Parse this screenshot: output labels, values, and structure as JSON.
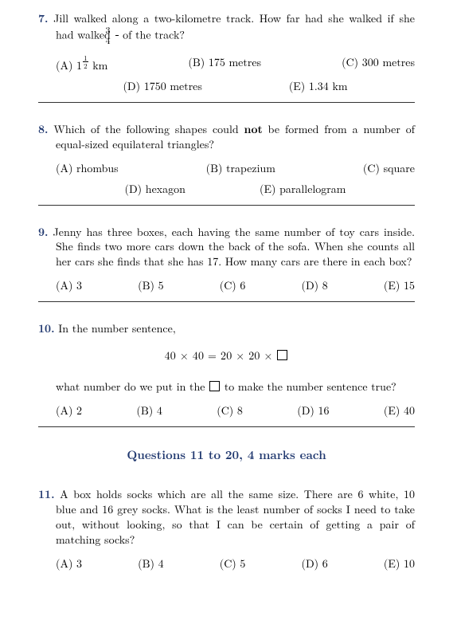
{
  "q7": {
    "num": "7.",
    "text_a": "Jill walked along a two-kilometre track. How far had she walked if she had walked ",
    "frac_num": "3",
    "frac_den": "4",
    "text_b": " of the track?",
    "A_pre": "(A) 1",
    "A_frac_num": "1",
    "A_frac_den": "2",
    "A_post": " km",
    "B": "(B) 175 metres",
    "C": "(C) 300 metres",
    "D": "(D) 1750 metres",
    "E": "(E) 1.34 km"
  },
  "q8": {
    "num": "8.",
    "text_a": "Which of the following shapes could ",
    "bold": "not",
    "text_b": " be formed from a number of equal-sized equilateral triangles?",
    "A": "(A) rhombus",
    "B": "(B) trapezium",
    "C": "(C) square",
    "D": "(D) hexagon",
    "E": "(E) parallelogram"
  },
  "q9": {
    "num": "9.",
    "text": "Jenny has three boxes, each having the same number of toy cars inside. She finds two more cars down the back of the sofa. When she counts all her cars she finds that she has 17. How many cars are there in each box?",
    "A": "(A) 3",
    "B": "(B) 5",
    "C": "(C) 6",
    "D": "(D) 8",
    "E": "(E) 15"
  },
  "q10": {
    "num": "10.",
    "text1": "In the number sentence,",
    "eqn": "40 × 40 = 20 × 20 × ",
    "text2_a": "what number do we put in the ",
    "text2_b": " to make the number sentence true?",
    "A": "(A) 2",
    "B": "(B) 4",
    "C": "(C) 8",
    "D": "(D) 16",
    "E": "(E) 40"
  },
  "section": "Questions 11 to 20, 4 marks each",
  "q11": {
    "num": "11.",
    "text": "A box holds socks which are all the same size. There are 6 white, 10 blue and 16 grey socks. What is the least number of socks I need to take out, without looking, so that I can be certain of getting a pair of matching socks?",
    "A": "(A) 3",
    "B": "(B) 4",
    "C": "(C) 5",
    "D": "(D) 6",
    "E": "(E) 10"
  }
}
